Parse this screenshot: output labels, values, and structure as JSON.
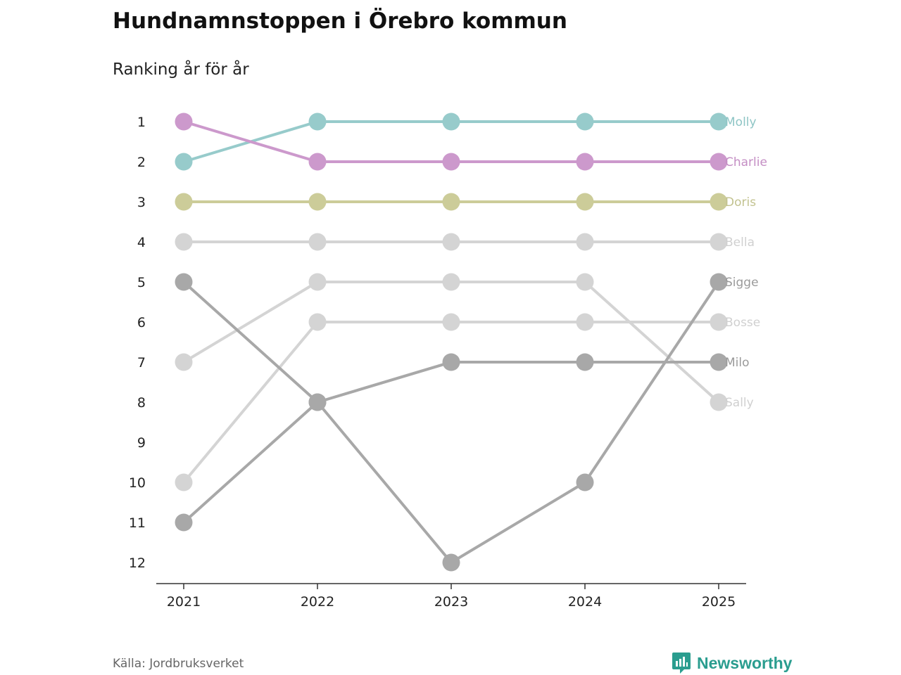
{
  "title": "Hundnamnstoppen i Örebro kommun",
  "subtitle": "Ranking år för år",
  "source": "Källa: Jordbruksverket",
  "brand": {
    "name": "Newsworthy",
    "icon": "newsworthy-logo-icon",
    "color": "#2a9d8f"
  },
  "chart_data": {
    "type": "line",
    "title": "Hundnamnstoppen i Örebro kommun",
    "subtitle": "Ranking år för år",
    "xlabel": "",
    "ylabel": "",
    "x": [
      "2021",
      "2022",
      "2023",
      "2024",
      "2025"
    ],
    "y_ticks": [
      1,
      2,
      3,
      4,
      5,
      6,
      7,
      8,
      9,
      10,
      11,
      12
    ],
    "ylim": [
      12,
      1
    ],
    "y_inverted": true,
    "grid": false,
    "legend": "direct labels at right end of lines",
    "series": [
      {
        "name": "Molly",
        "values": [
          2,
          1,
          1,
          1,
          1
        ],
        "color": "#97cbcb",
        "label_color": "#8ec5c5"
      },
      {
        "name": "Charlie",
        "values": [
          1,
          2,
          2,
          2,
          2
        ],
        "color": "#cc99cc",
        "label_color": "#c48ec4"
      },
      {
        "name": "Doris",
        "values": [
          3,
          3,
          3,
          3,
          3
        ],
        "color": "#cccc99",
        "label_color": "#c2c28f"
      },
      {
        "name": "Bella",
        "values": [
          4,
          4,
          4,
          4,
          4
        ],
        "color": "#d4d4d4",
        "label_color": "#d0d0d0"
      },
      {
        "name": "Sigge",
        "values": [
          5,
          8,
          12,
          10,
          5
        ],
        "color": "#a8a8a8",
        "label_color": "#9a9a9a"
      },
      {
        "name": "Bosse",
        "values": [
          10,
          6,
          6,
          6,
          6
        ],
        "color": "#d4d4d4",
        "label_color": "#d0d0d0"
      },
      {
        "name": "Milo",
        "values": [
          11,
          8,
          7,
          7,
          7
        ],
        "color": "#a8a8a8",
        "label_color": "#9a9a9a"
      },
      {
        "name": "Sally",
        "values": [
          7,
          5,
          5,
          5,
          8
        ],
        "color": "#d4d4d4",
        "label_color": "#d0d0d0"
      }
    ]
  }
}
